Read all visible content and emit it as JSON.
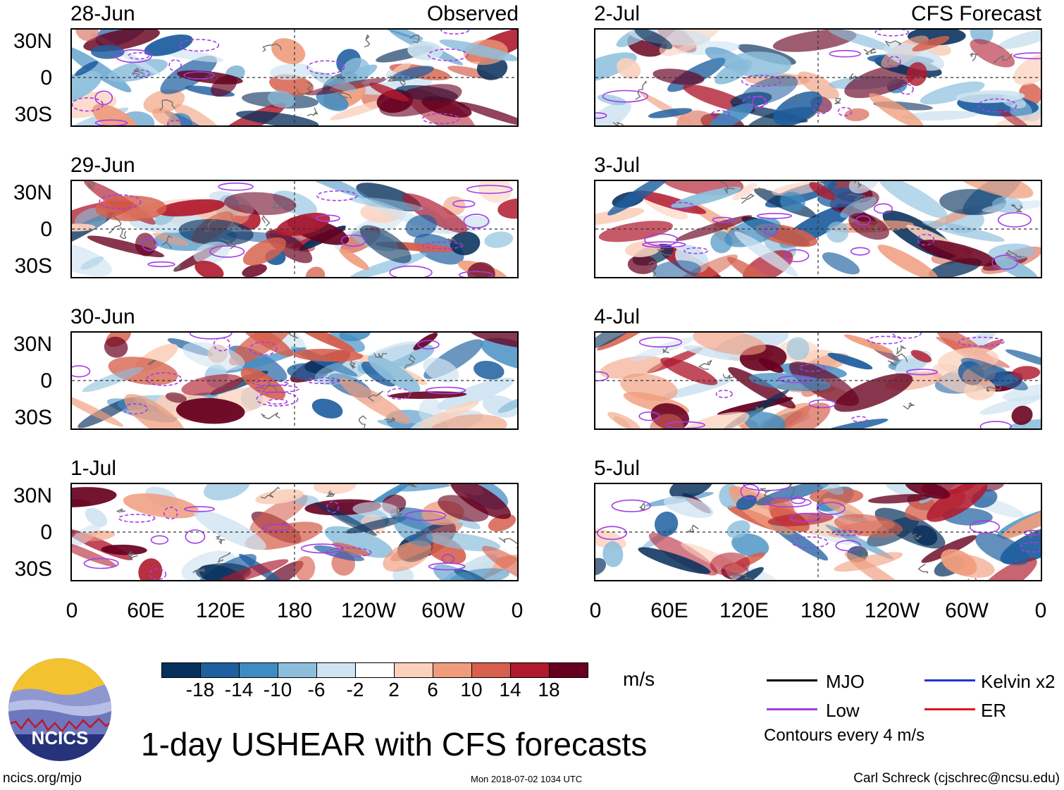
{
  "chart_data": {
    "type": "heatmap",
    "title": "1-day USHEAR with CFS forecasts",
    "variable": "USHEAR",
    "units": "m/s",
    "column_headers": {
      "left": "Observed",
      "right": "CFS Forecast"
    },
    "x_tick_labels": [
      "0",
      "60E",
      "120E",
      "180",
      "120W",
      "60W",
      "0"
    ],
    "y_tick_labels": [
      "30N",
      "0",
      "30S"
    ],
    "observed_panels": [
      "28-Jun",
      "29-Jun",
      "30-Jun",
      "1-Jul"
    ],
    "forecast_panels": [
      "2-Jul",
      "3-Jul",
      "4-Jul",
      "5-Jul"
    ],
    "colorbar": {
      "ticks": [
        "-18",
        "-14",
        "-10",
        "-6",
        "-2",
        "2",
        "6",
        "10",
        "14",
        "18"
      ],
      "colors": [
        "#08305c",
        "#1f5fa0",
        "#3f8cc2",
        "#8dbfdd",
        "#cfe3f1",
        "#ffffff",
        "#fbd0bc",
        "#f09c7c",
        "#d6604d",
        "#b01a2e",
        "#67001f"
      ]
    },
    "legend": [
      {
        "label": "MJO",
        "color": "#000000"
      },
      {
        "label": "Kelvin x2",
        "color": "#2533c8"
      },
      {
        "label": "Low",
        "color": "#a33de6"
      },
      {
        "label": "ER",
        "color": "#e0141a"
      }
    ],
    "contour_note": "Contours every 4 m/s"
  },
  "logo_text": "NCICS",
  "footer": {
    "left": "ncics.org/mjo",
    "middle": "Mon 2018-07-02 1034 UTC",
    "right": "Carl Schreck (cjschrec@ncsu.edu)"
  }
}
